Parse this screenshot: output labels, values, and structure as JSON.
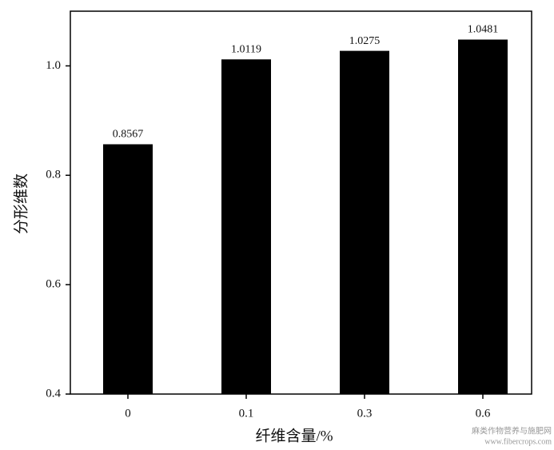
{
  "chart_data": {
    "type": "bar",
    "y_label": "分形维数",
    "x_label": "纤维含量/%",
    "categories": [
      "0",
      "0.1",
      "0.3",
      "0.6"
    ],
    "values": [
      0.8567,
      1.0119,
      1.0275,
      1.0481
    ],
    "color": "#000000",
    "ylim": [
      0.4,
      1.1
    ],
    "yticks": [
      0.4,
      0.6,
      0.8,
      {
        "value": 1,
        "label": "1.0"
      }
    ],
    "grid": false,
    "watermark": [
      "麻类作物营养与施肥网",
      "www.fibercrops.com"
    ]
  }
}
